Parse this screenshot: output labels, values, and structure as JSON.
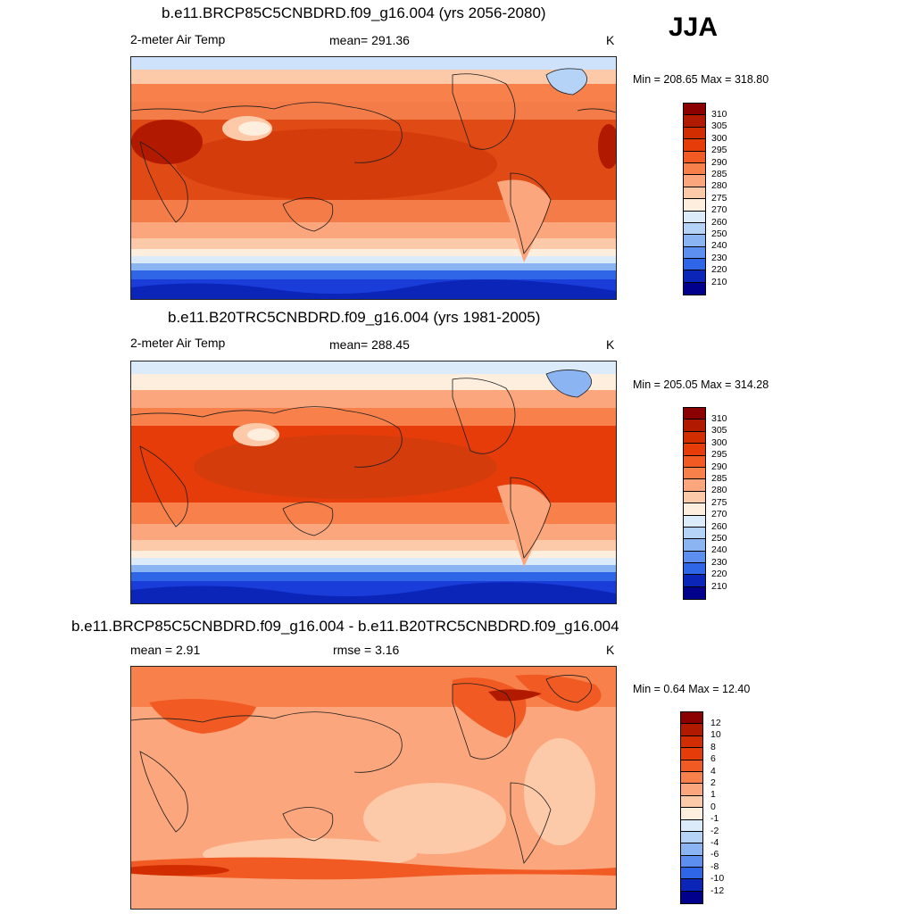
{
  "season": "JJA",
  "panels": [
    {
      "title": "b.e11.BRCP85C5CNBDRD.f09_g16.004 (yrs 2056-2080)",
      "variable": "2-meter Air Temp",
      "stat1": "mean= 291.36",
      "stat2": "",
      "units": "K",
      "minmax": "Min = 208.65 Max = 318.80",
      "colorbar_labels": [
        "310",
        "305",
        "300",
        "295",
        "290",
        "285",
        "280",
        "275",
        "270",
        "260",
        "250",
        "240",
        "230",
        "220",
        "210"
      ]
    },
    {
      "title": "b.e11.B20TRC5CNBDRD.f09_g16.004 (yrs 1981-2005)",
      "variable": "2-meter Air Temp",
      "stat1": "mean= 288.45",
      "stat2": "",
      "units": "K",
      "minmax": "Min = 205.05 Max = 314.28",
      "colorbar_labels": [
        "310",
        "305",
        "300",
        "295",
        "290",
        "285",
        "280",
        "275",
        "270",
        "260",
        "250",
        "240",
        "230",
        "220",
        "210"
      ]
    },
    {
      "title": "b.e11.BRCP85C5CNBDRD.f09_g16.004 - b.e11.B20TRC5CNBDRD.f09_g16.004",
      "variable": "",
      "stat1": "mean =   2.91",
      "stat2": "rmse =   3.16",
      "units": "K",
      "minmax": "Min =   0.64 Max =  12.40",
      "colorbar_labels": [
        "12",
        "10",
        "8",
        "6",
        "4",
        "2",
        "1",
        "0",
        "-1",
        "-2",
        "-4",
        "-6",
        "-8",
        "-10",
        "-12"
      ]
    }
  ],
  "colors": {
    "palette": [
      "#8b0000",
      "#b21a00",
      "#d12d00",
      "#e63c0a",
      "#f25a23",
      "#f7804b",
      "#fba67d",
      "#fdcaa9",
      "#feeedd",
      "#dcebfa",
      "#b5d2f7",
      "#8bb4f2",
      "#5c8ff0",
      "#2f66e8",
      "#1040d8",
      "#0a25b8",
      "#00008c"
    ],
    "map_ocean_warm": "#e04a14",
    "map_ocean_mid": "#f47c48",
    "map_polar": "#1a3cd8",
    "coastline": "#1e1e1e"
  }
}
